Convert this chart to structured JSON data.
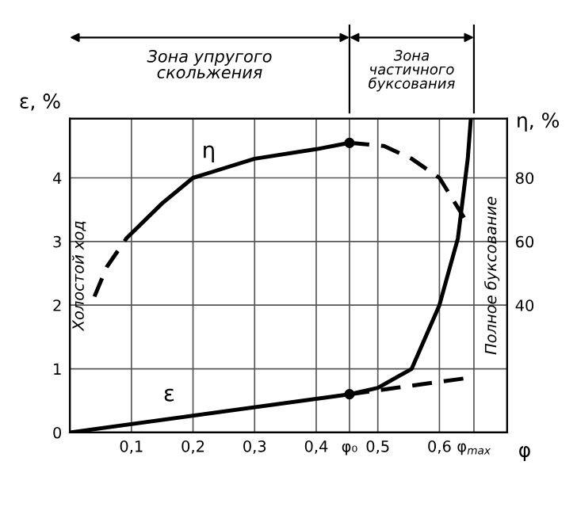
{
  "chart_data": {
    "type": "line",
    "xlabel": "φ",
    "ylabel": "ε, %",
    "y2label": "η, %",
    "xlim": [
      0,
      0.71
    ],
    "ylim": [
      0,
      4.93
    ],
    "y2lim": [
      0,
      98.6
    ],
    "xticks": [
      {
        "value": 0.1,
        "label": "0,1"
      },
      {
        "value": 0.2,
        "label": "0,2"
      },
      {
        "value": 0.3,
        "label": "0,3"
      },
      {
        "value": 0.4,
        "label": "0,4"
      },
      {
        "value": 0.454,
        "label": "φ₀"
      },
      {
        "value": 0.5,
        "label": "0,5"
      },
      {
        "value": 0.6,
        "label": "0,6"
      },
      {
        "value": 0.656,
        "label": "φ$_{max}$"
      }
    ],
    "yticks": [
      0,
      1,
      2,
      3,
      4
    ],
    "y2ticks": [
      40,
      60,
      80
    ],
    "grid": true,
    "series": [
      {
        "name": "ε",
        "color": "#000000",
        "line_style": "solid",
        "x": [
          0,
          0.454
        ],
        "values": [
          0,
          0.6
        ]
      },
      {
        "color": "#000000",
        "line_style": "dashed",
        "x": [
          0.454,
          0.656
        ],
        "values": [
          0.6,
          0.87
        ]
      },
      {
        "color": "#000000",
        "line_style": "solid",
        "x": [
          0.454,
          0.5,
          0.555,
          0.6,
          0.63,
          0.646,
          0.651
        ],
        "values": [
          0.6,
          0.7,
          1.0,
          2.0,
          3.05,
          4.3,
          4.93
        ]
      },
      {
        "color": "#000000",
        "line_style": "dashed",
        "axis": "y2",
        "x": [
          0.04,
          0.06,
          0.092
        ],
        "values": [
          42.7,
          52,
          61
        ]
      },
      {
        "name": "η",
        "color": "#000000",
        "line_style": "solid",
        "axis": "y2",
        "x": [
          0.092,
          0.15,
          0.2,
          0.3,
          0.4,
          0.454
        ],
        "values": [
          61,
          72,
          80,
          86,
          89,
          91
        ]
      },
      {
        "color": "#000000",
        "line_style": "dashed",
        "axis": "y2",
        "x": [
          0.454,
          0.51,
          0.555,
          0.6,
          0.64
        ],
        "values": [
          91,
          90,
          86,
          80,
          67.5
        ]
      },
      {
        "type": "scatter",
        "color": "#000000",
        "marker": "circle",
        "x": [
          0.454
        ],
        "values": [
          0.6
        ]
      },
      {
        "type": "scatter",
        "color": "#000000",
        "marker": "circle",
        "axis": "y2",
        "x": [
          0.454
        ],
        "values": [
          91
        ]
      }
    ],
    "annotations": [
      "Зона упругого\nскольжения",
      "Зона\nчастичного\nбуксования",
      "Холостой ход",
      "Полное буксование"
    ]
  }
}
